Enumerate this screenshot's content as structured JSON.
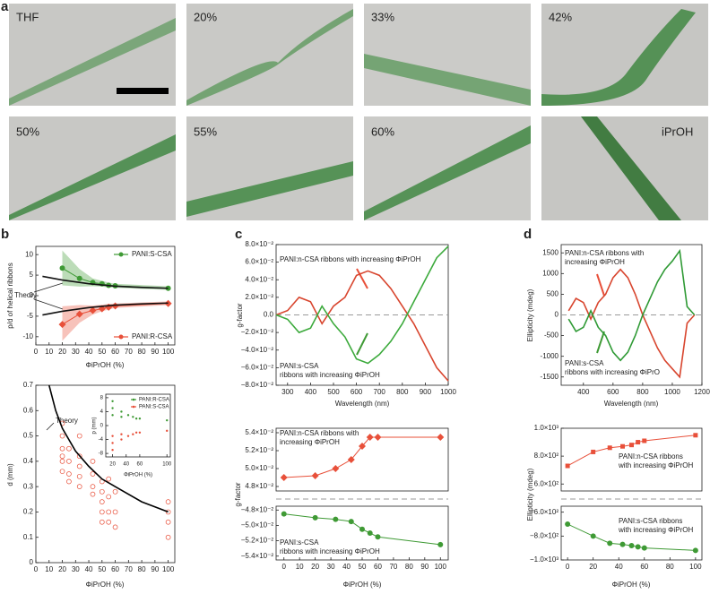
{
  "panel_labels": [
    "a",
    "b",
    "c",
    "d"
  ],
  "photos": {
    "labels": [
      "THF",
      "20%",
      "33%",
      "42%",
      "50%",
      "55%",
      "60%",
      "iPrOH"
    ]
  },
  "chart_data": [
    {
      "type": "line",
      "y_label": "p/d of helical ribbons",
      "x_label": "ΦiPrOH (%)",
      "annotations": [
        [
          "Theory"
        ]
      ],
      "xlim": [
        0,
        105
      ],
      "xticks": [
        0,
        10,
        20,
        30,
        40,
        50,
        60,
        70,
        80,
        90,
        100
      ],
      "ylim": [
        -12,
        12
      ],
      "yticks": [
        -10,
        -5,
        0,
        5,
        10
      ],
      "series": [
        {
          "name": "PANI:S-CSA",
          "color": "#3f9a35",
          "marker": "circle",
          "line": true,
          "legend": "upper right",
          "x": [
            20,
            33,
            43,
            50,
            55,
            60,
            100
          ],
          "values": [
            6.7,
            4.2,
            3.2,
            2.9,
            2.5,
            2.4,
            1.8
          ],
          "upper": [
            11,
            6.5,
            4.2,
            3.6,
            3.2,
            2.9,
            2.3
          ],
          "lower": [
            2.5,
            2.2,
            2.3,
            2.2,
            2.0,
            1.9,
            1.4
          ]
        },
        {
          "name": "PANI:R-CSA",
          "color": "#e8503a",
          "marker": "diamond",
          "line": true,
          "legend": "lower right",
          "x": [
            20,
            33,
            43,
            50,
            55,
            60,
            100
          ],
          "values": [
            -7,
            -4.5,
            -3.6,
            -3.2,
            -2.8,
            -2.5,
            -1.9
          ],
          "upper": [
            -2.6,
            -2.3,
            -2.4,
            -2.2,
            -2.0,
            -1.9,
            -1.4
          ],
          "lower": [
            -11,
            -6.6,
            -4.6,
            -3.8,
            -3.4,
            -3.0,
            -2.3
          ]
        },
        {
          "color": "#111111",
          "marker": "none",
          "line": true,
          "x": [
            5,
            20,
            40,
            60,
            80,
            100
          ],
          "values": [
            4.7,
            3.8,
            2.9,
            2.3,
            2.0,
            1.8
          ]
        },
        {
          "color": "#111111",
          "marker": "none",
          "line": true,
          "x": [
            5,
            20,
            40,
            60,
            80,
            100
          ],
          "values": [
            -4.7,
            -3.8,
            -2.9,
            -2.3,
            -2.0,
            -1.8
          ]
        }
      ]
    },
    {
      "type": "scatter",
      "y_label": "d (mm)",
      "x_label": "ΦiPrOH (%)",
      "annotations": [
        [
          "Theory"
        ]
      ],
      "xlim": [
        0,
        105
      ],
      "xticks": [
        0,
        10,
        20,
        30,
        40,
        50,
        60,
        70,
        80,
        90,
        100
      ],
      "ylim": [
        0,
        0.7
      ],
      "yticks": [
        0,
        0.1,
        0.2,
        0.3,
        0.4,
        0.5,
        0.6,
        0.7
      ],
      "series": [
        {
          "color": "#e8503a",
          "marker": "open-circle",
          "line": false,
          "x": [
            20,
            20,
            20,
            20,
            20,
            20,
            25,
            25,
            25,
            25,
            33,
            33,
            33,
            33,
            33,
            43,
            43,
            43,
            43,
            50,
            50,
            50,
            50,
            50,
            55,
            55,
            55,
            55,
            60,
            60,
            60,
            100,
            100,
            100,
            100
          ],
          "values": [
            0.55,
            0.5,
            0.45,
            0.42,
            0.4,
            0.36,
            0.45,
            0.4,
            0.35,
            0.32,
            0.5,
            0.42,
            0.38,
            0.34,
            0.3,
            0.4,
            0.35,
            0.3,
            0.27,
            0.32,
            0.28,
            0.24,
            0.2,
            0.16,
            0.33,
            0.26,
            0.2,
            0.16,
            0.28,
            0.2,
            0.14,
            0.24,
            0.2,
            0.16,
            0.1
          ]
        },
        {
          "color": "#000000",
          "marker": "none",
          "line": true,
          "x": [
            10,
            15,
            20,
            30,
            40,
            50,
            60,
            80,
            100
          ],
          "values": [
            0.7,
            0.6,
            0.53,
            0.44,
            0.38,
            0.33,
            0.3,
            0.24,
            0.2
          ]
        }
      ]
    },
    {
      "type": "scatter",
      "y_label": "p (mm)",
      "x_label": "ΦiPrOH (%)",
      "xlim": [
        10,
        105
      ],
      "xticks": [
        20,
        40,
        60,
        100
      ],
      "ylim": [
        -9,
        9
      ],
      "yticks": [
        -8,
        -4,
        0,
        4,
        8
      ],
      "series": [
        {
          "name": "PANI:R-CSA",
          "color": "#3f9a35",
          "marker": "dot",
          "line": false,
          "legend": "upper right",
          "x": [
            20,
            20,
            20,
            33,
            33,
            43,
            50,
            55,
            60,
            100
          ],
          "values": [
            7,
            5,
            3,
            4,
            2.5,
            3,
            2.5,
            2,
            2,
            1.5
          ]
        },
        {
          "name": "PANI:S-CSA",
          "color": "#e8503a",
          "marker": "dot",
          "line": false,
          "legend": "upper right",
          "x": [
            20,
            20,
            20,
            33,
            33,
            43,
            50,
            55,
            60,
            100
          ],
          "values": [
            -7,
            -5,
            -3,
            -4,
            -2.5,
            -3,
            -2.5,
            -2,
            -2,
            -1.5
          ]
        }
      ]
    },
    {
      "type": "line",
      "y_label": "g-factor",
      "x_label": "Wavelength (nm)",
      "zero_line": true,
      "annotations": [
        [
          "PANI:n-CSA ribbons with increasing ΦiPrOH"
        ],
        [
          "PANI:s-CSA",
          "ribbons with increasing ΦiPrOH"
        ]
      ],
      "xlim": [
        250,
        1000
      ],
      "xticks": [
        300,
        400,
        500,
        600,
        700,
        800,
        900,
        1000
      ],
      "ylim": [
        -0.08,
        0.08
      ],
      "yticks": [
        {
          "value": -0.08,
          "label": "−8.0×10⁻²"
        },
        {
          "value": -0.06,
          "label": "−6.0×10⁻²"
        },
        {
          "value": -0.04,
          "label": "−4.0×10⁻²"
        },
        {
          "value": -0.02,
          "label": "−2.0×10⁻²"
        },
        {
          "value": 0,
          "label": "0.0"
        },
        {
          "value": 0.02,
          "label": "2.0×10⁻²"
        },
        {
          "value": 0.04,
          "label": "4.0×10⁻²"
        },
        {
          "value": 0.06,
          "label": "6.0×10⁻²"
        },
        {
          "value": 0.08,
          "label": "8.0×10⁻²"
        }
      ],
      "series": [
        {
          "color": "#d8452e",
          "marker": "none",
          "line": true,
          "x": [
            250,
            300,
            350,
            400,
            450,
            500,
            550,
            600,
            650,
            700,
            750,
            800,
            850,
            900,
            950,
            1000
          ],
          "values": [
            0,
            0.005,
            0.02,
            0.015,
            -0.01,
            0.01,
            0.02,
            0.045,
            0.05,
            0.045,
            0.03,
            0.01,
            -0.01,
            -0.035,
            -0.06,
            -0.075
          ]
        },
        {
          "color": "#3caa3c",
          "marker": "none",
          "line": true,
          "x": [
            250,
            300,
            350,
            400,
            450,
            500,
            550,
            600,
            650,
            700,
            750,
            800,
            850,
            900,
            950,
            1000
          ],
          "values": [
            0,
            -0.005,
            -0.02,
            -0.015,
            0.01,
            -0.01,
            -0.025,
            -0.05,
            -0.055,
            -0.045,
            -0.03,
            -0.01,
            0.015,
            0.04,
            0.065,
            0.078
          ]
        }
      ]
    },
    {
      "type": "line",
      "annotations": [
        [
          "PANI:n-CSA ribbons with",
          "increasing ΦiPrOH"
        ]
      ],
      "xlim": [
        -5,
        105
      ],
      "ylim": [
        0.0475,
        0.0545
      ],
      "yticks": [
        {
          "value": 0.048,
          "label": "4.8×10⁻²"
        },
        {
          "value": 0.05,
          "label": "5.0×10⁻²"
        },
        {
          "value": 0.052,
          "label": "5.2×10⁻²"
        },
        {
          "value": 0.054,
          "label": "5.4×10⁻²"
        }
      ],
      "series": [
        {
          "color": "#e8503a",
          "marker": "diamond",
          "line": true,
          "x": [
            0,
            20,
            33,
            43,
            50,
            55,
            60,
            100
          ],
          "values": [
            0.049,
            0.0492,
            0.05,
            0.051,
            0.0525,
            0.0535,
            0.0535,
            0.0535
          ]
        }
      ]
    },
    {
      "type": "line",
      "y_label": "g-factor",
      "x_label": "ΦiPrOH (%)",
      "annotations": [
        [
          "PANI:s-CSA",
          "ribbons with increasing ΦiPrOH"
        ]
      ],
      "xlim": [
        -5,
        105
      ],
      "xticks": [
        0,
        10,
        20,
        30,
        40,
        50,
        60,
        70,
        80,
        90,
        100
      ],
      "ylim": [
        -0.0545,
        -0.0475
      ],
      "yticks": [
        {
          "value": -0.048,
          "label": "−4.8×10⁻²"
        },
        {
          "value": -0.05,
          "label": "−5.0×10⁻²"
        },
        {
          "value": -0.052,
          "label": "−5.2×10⁻²"
        },
        {
          "value": -0.054,
          "label": "−5.4×10⁻²"
        }
      ],
      "series": [
        {
          "color": "#3f9a35",
          "marker": "circle",
          "line": true,
          "x": [
            0,
            20,
            33,
            43,
            50,
            55,
            60,
            100
          ],
          "values": [
            -0.0485,
            -0.049,
            -0.0492,
            -0.0495,
            -0.0505,
            -0.051,
            -0.0515,
            -0.0525
          ]
        }
      ]
    },
    {
      "type": "line",
      "y_label": "Ellipticity (mdeg)",
      "x_label": "Wavelength (nm)",
      "zero_line": true,
      "annotations": [
        [
          "PANI:n-CSA ribbons with",
          "increasing ΦiPrOH"
        ],
        [
          "PANI:s-CSA",
          "ribbons with increasing ΦiPrO"
        ]
      ],
      "xlim": [
        250,
        1200
      ],
      "xticks": [
        400,
        600,
        800,
        1000,
        1200
      ],
      "ylim": [
        -1700,
        1700
      ],
      "yticks": [
        -1500,
        -1000,
        -500,
        0,
        500,
        1000,
        1500
      ],
      "series": [
        {
          "color": "#d8452e",
          "marker": "none",
          "line": true,
          "x": [
            300,
            350,
            400,
            450,
            500,
            550,
            600,
            650,
            700,
            750,
            800,
            850,
            900,
            950,
            1000,
            1050,
            1100,
            1150
          ],
          "values": [
            100,
            400,
            300,
            -100,
            300,
            500,
            900,
            1100,
            900,
            500,
            0,
            -400,
            -800,
            -1100,
            -1300,
            -1500,
            -200,
            0
          ]
        },
        {
          "color": "#2f9a35",
          "marker": "none",
          "line": true,
          "x": [
            300,
            350,
            400,
            450,
            500,
            550,
            600,
            650,
            700,
            750,
            800,
            850,
            900,
            950,
            1000,
            1050,
            1100,
            1150
          ],
          "values": [
            -100,
            -400,
            -300,
            100,
            -300,
            -500,
            -900,
            -1100,
            -900,
            -500,
            0,
            400,
            800,
            1100,
            1300,
            1550,
            200,
            0
          ]
        }
      ]
    },
    {
      "type": "line",
      "annotations": [
        [
          "PANI:n-CSA ribbons",
          "with increasing ΦiPrOH"
        ]
      ],
      "xlim": [
        -5,
        105
      ],
      "ylim": [
        550,
        1000
      ],
      "yticks": [
        {
          "value": 600,
          "label": "6.0×10²"
        },
        {
          "value": 800,
          "label": "8.0×10²"
        },
        {
          "value": 1000,
          "label": "1.0×10³"
        }
      ],
      "series": [
        {
          "color": "#e8503a",
          "marker": "square",
          "line": true,
          "x": [
            0,
            20,
            33,
            43,
            50,
            55,
            60,
            100
          ],
          "values": [
            730,
            830,
            860,
            870,
            880,
            900,
            910,
            950
          ]
        }
      ]
    },
    {
      "type": "line",
      "y_label": "Ellipticity (mdeg)",
      "x_label": "ΦiPrOH (%)",
      "annotations": [
        [
          "PANI:s-CSA ribbons",
          "with increasing ΦiPrOH"
        ]
      ],
      "xlim": [
        -5,
        105
      ],
      "xticks": [
        0,
        20,
        40,
        60,
        80,
        100
      ],
      "ylim": [
        -1000,
        -550
      ],
      "yticks": [
        {
          "value": -600,
          "label": "−6.0×10²"
        },
        {
          "value": -800,
          "label": "−8.0×10²"
        },
        {
          "value": -1000,
          "label": "−1.0×10³"
        }
      ],
      "series": [
        {
          "color": "#3f9a35",
          "marker": "circle",
          "line": true,
          "x": [
            0,
            20,
            33,
            43,
            50,
            55,
            60,
            100
          ],
          "values": [
            -700,
            -800,
            -860,
            -870,
            -880,
            -890,
            -900,
            -920
          ]
        }
      ]
    }
  ]
}
